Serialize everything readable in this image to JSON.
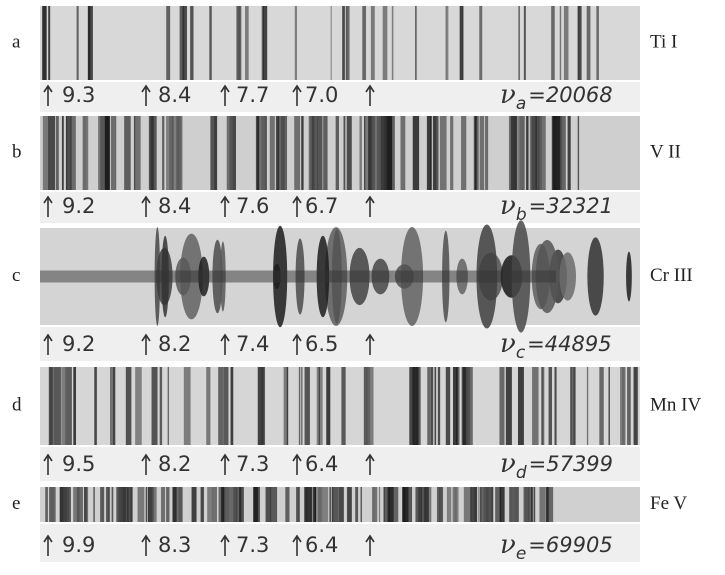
{
  "symbol": "ν",
  "equals": "=",
  "panels": [
    {
      "letter": "a",
      "element": "Ti I",
      "marks": [
        "9.3",
        "8.4",
        "7.7",
        "7.0"
      ],
      "subscript": "a",
      "value": "20068"
    },
    {
      "letter": "b",
      "element": "V II",
      "marks": [
        "9.2",
        "8.4",
        "7.6",
        "6.7"
      ],
      "subscript": "b",
      "value": "32321"
    },
    {
      "letter": "c",
      "element": "Cr III",
      "marks": [
        "9.2",
        "8.2",
        "7.4",
        "6.5"
      ],
      "subscript": "c",
      "value": "44895"
    },
    {
      "letter": "d",
      "element": "Mn IV",
      "marks": [
        "9.5",
        "8.2",
        "7.3",
        "6.4"
      ],
      "subscript": "d",
      "value": "57399"
    },
    {
      "letter": "e",
      "element": "Fe V",
      "marks": [
        "9.9",
        "8.3",
        "7.3",
        "6.4"
      ],
      "subscript": "e",
      "value": "69905"
    }
  ]
}
